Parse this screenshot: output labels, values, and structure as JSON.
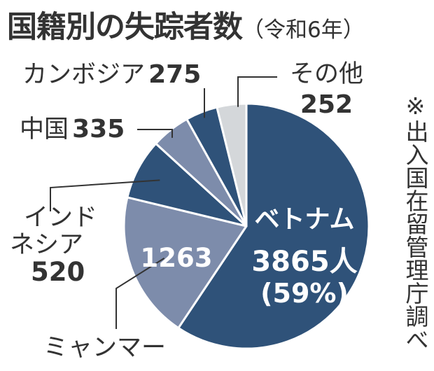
{
  "chart_data": {
    "type": "pie",
    "title": "国籍別の失踪者数",
    "subtitle": "（令和6年）",
    "slices": [
      {
        "label": "ベトナム",
        "value": 3865,
        "unit": "人",
        "percent_label": "(59%)",
        "color": "#2f5279"
      },
      {
        "label": "ミャンマー",
        "value": 1263,
        "color": "#7d8cab"
      },
      {
        "label": "インドネシア",
        "label_lines": [
          "インド",
          "ネシア"
        ],
        "value": 520,
        "color": "#2f5279"
      },
      {
        "label": "中国",
        "value": 335,
        "color": "#7d8cab"
      },
      {
        "label": "カンボジア",
        "value": 275,
        "color": "#2f5279"
      },
      {
        "label": "その他",
        "value": 252,
        "color": "#d4d7da"
      }
    ],
    "source_note": "※出入国在留管理庁調べ"
  }
}
